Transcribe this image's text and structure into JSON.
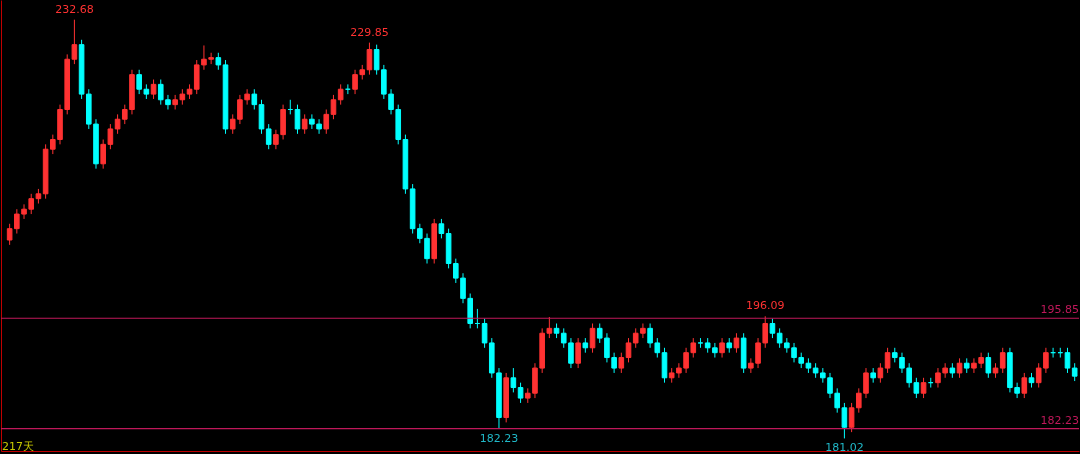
{
  "chart_data": {
    "type": "candlestick",
    "categories": [
      null,
      null,
      null,
      null,
      null,
      null,
      null,
      null,
      null,
      null,
      null,
      null,
      null,
      null,
      null,
      null,
      null,
      null,
      null,
      null,
      null,
      null,
      null,
      null,
      null,
      null,
      null,
      null,
      null,
      null,
      null,
      null,
      null,
      null,
      null,
      null,
      null,
      null,
      null,
      null,
      null,
      null,
      null,
      null,
      null,
      null,
      null,
      null,
      null,
      null,
      null,
      null,
      null,
      null,
      null,
      null,
      null,
      null,
      null,
      null,
      null,
      null,
      null,
      null,
      null,
      null,
      null,
      null,
      null,
      null,
      null,
      null,
      null,
      null,
      null,
      null,
      null,
      null,
      null,
      null,
      null,
      null,
      null,
      null,
      null,
      null,
      null,
      null,
      null,
      null,
      null,
      null,
      null,
      null,
      null,
      null,
      null,
      null,
      null,
      null,
      null,
      null,
      null,
      null,
      null,
      null,
      null,
      null,
      null,
      null,
      null,
      null,
      null,
      null,
      null,
      null,
      null,
      null,
      null,
      null,
      null,
      null,
      null,
      null,
      null,
      null,
      null,
      null,
      null,
      null,
      null,
      null,
      null,
      null,
      null,
      null,
      null,
      null,
      null,
      null,
      null,
      null,
      null,
      null,
      null,
      null,
      null,
      null,
      null
    ],
    "ohlc": [
      [
        205.5,
        207.5,
        204.9,
        206.9
      ],
      [
        206.9,
        209.3,
        206.3,
        208.7
      ],
      [
        208.7,
        209.9,
        208.1,
        209.3
      ],
      [
        209.3,
        211.2,
        208.7,
        210.6
      ],
      [
        210.6,
        211.8,
        210.0,
        211.2
      ],
      [
        211.2,
        217.3,
        210.6,
        216.7
      ],
      [
        216.7,
        218.5,
        216.1,
        217.9
      ],
      [
        217.9,
        222.2,
        217.3,
        221.6
      ],
      [
        221.6,
        228.4,
        221.0,
        227.8
      ],
      [
        227.8,
        232.68,
        227.2,
        229.6
      ],
      [
        229.6,
        230.2,
        222.9,
        223.5
      ],
      [
        223.5,
        224.1,
        219.2,
        219.8
      ],
      [
        219.8,
        220.4,
        214.3,
        214.9
      ],
      [
        214.9,
        217.9,
        214.3,
        217.3
      ],
      [
        217.3,
        219.8,
        216.7,
        219.2
      ],
      [
        219.2,
        221.0,
        218.6,
        220.4
      ],
      [
        220.4,
        222.2,
        219.8,
        221.6
      ],
      [
        221.6,
        226.5,
        221.0,
        225.9
      ],
      [
        225.9,
        226.5,
        223.5,
        224.1
      ],
      [
        224.1,
        224.7,
        222.9,
        223.5
      ],
      [
        223.5,
        225.3,
        222.9,
        224.7
      ],
      [
        224.7,
        225.3,
        222.2,
        222.8
      ],
      [
        222.8,
        223.4,
        221.6,
        222.2
      ],
      [
        222.2,
        223.4,
        221.6,
        222.8
      ],
      [
        222.8,
        224.1,
        222.2,
        223.5
      ],
      [
        223.5,
        224.7,
        222.9,
        224.1
      ],
      [
        224.1,
        227.7,
        223.5,
        227.1
      ],
      [
        227.1,
        229.5,
        226.5,
        227.8
      ],
      [
        227.8,
        228.6,
        227.2,
        228.0
      ],
      [
        228.0,
        228.6,
        226.5,
        227.1
      ],
      [
        227.1,
        227.7,
        218.6,
        219.2
      ],
      [
        219.2,
        221.0,
        218.6,
        220.4
      ],
      [
        220.4,
        223.4,
        219.8,
        222.8
      ],
      [
        222.8,
        224.1,
        222.2,
        223.5
      ],
      [
        223.5,
        224.1,
        221.6,
        222.2
      ],
      [
        222.2,
        222.8,
        218.6,
        219.2
      ],
      [
        219.2,
        219.8,
        216.7,
        217.3
      ],
      [
        217.3,
        219.1,
        216.7,
        218.5
      ],
      [
        218.5,
        222.2,
        217.9,
        221.6
      ],
      [
        221.6,
        222.8,
        221.0,
        221.6
      ],
      [
        221.6,
        222.2,
        218.6,
        219.2
      ],
      [
        219.2,
        221.0,
        218.6,
        220.4
      ],
      [
        220.4,
        221.0,
        219.2,
        219.8
      ],
      [
        219.8,
        220.4,
        218.6,
        219.2
      ],
      [
        219.2,
        221.6,
        218.6,
        221.0
      ],
      [
        221.0,
        223.4,
        220.4,
        222.8
      ],
      [
        222.8,
        224.7,
        222.2,
        224.1
      ],
      [
        224.1,
        224.7,
        223.5,
        224.1
      ],
      [
        224.1,
        226.5,
        223.5,
        225.9
      ],
      [
        225.9,
        227.1,
        225.3,
        226.5
      ],
      [
        226.5,
        229.85,
        225.9,
        229.0
      ],
      [
        229.0,
        229.6,
        225.9,
        226.5
      ],
      [
        226.5,
        227.1,
        222.9,
        223.5
      ],
      [
        223.5,
        224.1,
        221.0,
        221.6
      ],
      [
        221.6,
        222.2,
        217.3,
        217.9
      ],
      [
        217.9,
        218.5,
        211.2,
        211.8
      ],
      [
        211.8,
        212.4,
        206.3,
        206.9
      ],
      [
        206.9,
        207.5,
        205.1,
        205.7
      ],
      [
        205.7,
        206.3,
        202.6,
        203.2
      ],
      [
        203.2,
        208.1,
        202.6,
        207.5
      ],
      [
        207.5,
        208.1,
        205.7,
        206.3
      ],
      [
        206.3,
        206.9,
        202.0,
        202.6
      ],
      [
        202.6,
        203.2,
        200.2,
        200.8
      ],
      [
        200.8,
        201.4,
        197.7,
        198.3
      ],
      [
        198.3,
        198.9,
        194.6,
        195.2
      ],
      [
        195.2,
        197.0,
        194.6,
        195.2
      ],
      [
        195.2,
        195.8,
        192.2,
        192.8
      ],
      [
        192.8,
        193.4,
        188.5,
        189.1
      ],
      [
        189.1,
        189.7,
        182.23,
        183.6
      ],
      [
        183.6,
        189.1,
        183.0,
        188.5
      ],
      [
        188.5,
        189.7,
        186.7,
        187.3
      ],
      [
        187.3,
        187.9,
        185.4,
        186.0
      ],
      [
        186.0,
        187.2,
        185.4,
        186.6
      ],
      [
        186.6,
        190.3,
        186.0,
        189.7
      ],
      [
        189.7,
        194.6,
        189.1,
        194.0
      ],
      [
        194.0,
        196.0,
        193.4,
        194.6
      ],
      [
        194.6,
        195.2,
        193.4,
        194.0
      ],
      [
        194.0,
        194.6,
        192.2,
        192.8
      ],
      [
        192.8,
        193.4,
        189.7,
        190.3
      ],
      [
        190.3,
        193.4,
        189.7,
        192.8
      ],
      [
        192.8,
        193.4,
        191.6,
        192.2
      ],
      [
        192.2,
        195.2,
        191.6,
        194.6
      ],
      [
        194.6,
        195.2,
        192.8,
        193.4
      ],
      [
        193.4,
        194.0,
        190.4,
        191.0
      ],
      [
        191.0,
        191.6,
        189.1,
        189.7
      ],
      [
        189.7,
        191.6,
        189.1,
        191.0
      ],
      [
        191.0,
        193.4,
        190.4,
        192.8
      ],
      [
        192.8,
        194.6,
        192.2,
        194.0
      ],
      [
        194.0,
        195.2,
        193.4,
        194.6
      ],
      [
        194.6,
        195.2,
        192.2,
        192.8
      ],
      [
        192.8,
        193.4,
        191.0,
        191.6
      ],
      [
        191.6,
        192.2,
        187.9,
        188.5
      ],
      [
        188.5,
        189.7,
        187.9,
        189.1
      ],
      [
        189.1,
        190.3,
        188.5,
        189.7
      ],
      [
        189.7,
        192.2,
        189.1,
        191.6
      ],
      [
        191.6,
        193.4,
        191.0,
        192.8
      ],
      [
        192.8,
        193.4,
        192.2,
        192.8
      ],
      [
        192.8,
        193.4,
        191.6,
        192.2
      ],
      [
        192.2,
        192.8,
        191.0,
        191.6
      ],
      [
        191.6,
        193.4,
        191.0,
        192.8
      ],
      [
        192.8,
        193.4,
        191.6,
        192.2
      ],
      [
        192.2,
        194.0,
        191.6,
        193.4
      ],
      [
        193.4,
        194.0,
        189.1,
        189.7
      ],
      [
        189.7,
        190.9,
        189.1,
        190.3
      ],
      [
        190.3,
        193.4,
        189.7,
        192.8
      ],
      [
        192.8,
        196.09,
        192.2,
        195.2
      ],
      [
        195.2,
        195.8,
        193.4,
        194.0
      ],
      [
        194.0,
        194.6,
        192.2,
        192.8
      ],
      [
        192.8,
        193.4,
        191.6,
        192.2
      ],
      [
        192.2,
        192.8,
        190.4,
        191.0
      ],
      [
        191.0,
        191.6,
        189.7,
        190.3
      ],
      [
        190.3,
        190.9,
        189.1,
        189.7
      ],
      [
        189.7,
        190.3,
        188.5,
        189.1
      ],
      [
        189.1,
        189.7,
        187.9,
        188.5
      ],
      [
        188.5,
        189.1,
        186.0,
        186.6
      ],
      [
        186.6,
        187.2,
        184.2,
        184.8
      ],
      [
        184.8,
        185.4,
        181.02,
        182.4
      ],
      [
        182.4,
        185.4,
        181.8,
        184.8
      ],
      [
        184.8,
        187.2,
        184.2,
        186.6
      ],
      [
        186.6,
        189.7,
        186.0,
        189.1
      ],
      [
        189.1,
        189.7,
        187.9,
        188.5
      ],
      [
        188.5,
        190.3,
        187.9,
        189.7
      ],
      [
        189.7,
        192.2,
        189.1,
        191.6
      ],
      [
        191.6,
        192.2,
        190.4,
        191.0
      ],
      [
        191.0,
        191.6,
        189.1,
        189.7
      ],
      [
        189.7,
        190.3,
        187.3,
        187.9
      ],
      [
        187.9,
        188.5,
        186.0,
        186.6
      ],
      [
        186.6,
        188.5,
        186.0,
        187.9
      ],
      [
        187.9,
        188.5,
        187.3,
        187.9
      ],
      [
        187.9,
        189.7,
        187.3,
        189.1
      ],
      [
        189.1,
        190.3,
        188.5,
        189.7
      ],
      [
        189.7,
        190.3,
        188.5,
        189.1
      ],
      [
        189.1,
        190.9,
        188.5,
        190.3
      ],
      [
        190.3,
        190.9,
        189.1,
        189.7
      ],
      [
        189.7,
        190.9,
        189.1,
        190.3
      ],
      [
        190.3,
        191.6,
        189.7,
        191.0
      ],
      [
        191.0,
        191.6,
        188.5,
        189.1
      ],
      [
        189.1,
        190.3,
        188.5,
        189.7
      ],
      [
        189.7,
        192.2,
        189.1,
        191.6
      ],
      [
        191.6,
        192.2,
        186.7,
        187.3
      ],
      [
        187.3,
        187.9,
        186.0,
        186.6
      ],
      [
        186.6,
        189.1,
        186.0,
        188.5
      ],
      [
        188.5,
        189.1,
        187.3,
        187.9
      ],
      [
        187.9,
        190.3,
        187.3,
        189.7
      ],
      [
        189.7,
        192.2,
        189.1,
        191.6
      ],
      [
        191.6,
        192.2,
        191.0,
        191.6
      ],
      [
        191.6,
        192.2,
        191.0,
        191.6
      ],
      [
        191.6,
        192.2,
        189.1,
        189.7
      ],
      [
        189.7,
        190.3,
        188.1,
        188.7
      ]
    ],
    "colors": [
      "#ff3232",
      "#ff3232",
      "#ff3232",
      "#ff3232",
      "#ff3232",
      "#ff3232",
      "#ff3232",
      "#ff3232",
      "#ff3232",
      "#ff3232",
      "#00ffff",
      "#00ffff",
      "#00ffff",
      "#ff3232",
      "#ff3232",
      "#ff3232",
      "#ff3232",
      "#ff3232",
      "#00ffff",
      "#00ffff",
      "#ff3232",
      "#00ffff",
      "#00ffff",
      "#ff3232",
      "#ff3232",
      "#ff3232",
      "#ff3232",
      "#ff3232",
      "#ff3232",
      "#00ffff",
      "#00ffff",
      "#ff3232",
      "#ff3232",
      "#ff3232",
      "#00ffff",
      "#00ffff",
      "#00ffff",
      "#ff3232",
      "#ff3232",
      "#00ffff",
      "#00ffff",
      "#ff3232",
      "#00ffff",
      "#00ffff",
      "#ff3232",
      "#ff3232",
      "#ff3232",
      "#00ffff",
      "#ff3232",
      "#ff3232",
      "#ff3232",
      "#00ffff",
      "#00ffff",
      "#00ffff",
      "#00ffff",
      "#00ffff",
      "#00ffff",
      "#00ffff",
      "#00ffff",
      "#ff3232",
      "#00ffff",
      "#00ffff",
      "#00ffff",
      "#00ffff",
      "#00ffff",
      "#00ffff",
      "#00ffff",
      "#00ffff",
      "#00ffff",
      "#ff3232",
      "#00ffff",
      "#00ffff",
      "#ff3232",
      "#ff3232",
      "#ff3232",
      "#ff3232",
      "#00ffff",
      "#00ffff",
      "#00ffff",
      "#ff3232",
      "#00ffff",
      "#ff3232",
      "#00ffff",
      "#00ffff",
      "#00ffff",
      "#ff3232",
      "#ff3232",
      "#ff3232",
      "#ff3232",
      "#00ffff",
      "#00ffff",
      "#00ffff",
      "#ff3232",
      "#ff3232",
      "#ff3232",
      "#ff3232",
      "#00ffff",
      "#00ffff",
      "#00ffff",
      "#ff3232",
      "#00ffff",
      "#ff3232",
      "#00ffff",
      "#ff3232",
      "#ff3232",
      "#ff3232",
      "#00ffff",
      "#00ffff",
      "#00ffff",
      "#00ffff",
      "#00ffff",
      "#00ffff",
      "#00ffff",
      "#00ffff",
      "#00ffff",
      "#00ffff",
      "#00ffff",
      "#ff3232",
      "#ff3232",
      "#ff3232",
      "#00ffff",
      "#ff3232",
      "#ff3232",
      "#00ffff",
      "#00ffff",
      "#00ffff",
      "#00ffff",
      "#ff3232",
      "#00ffff",
      "#ff3232",
      "#ff3232",
      "#00ffff",
      "#ff3232",
      "#00ffff",
      "#ff3232",
      "#ff3232",
      "#00ffff",
      "#ff3232",
      "#ff3232",
      "#00ffff",
      "#00ffff",
      "#ff3232",
      "#00ffff",
      "#ff3232",
      "#ff3232",
      "#00ffff",
      "#00ffff",
      "#00ffff",
      "#00ffff"
    ],
    "tick_labels": false,
    "ref_lines": [
      {
        "axis": "y",
        "value": 195.85,
        "label": "195.85",
        "color": "#c0185a"
      },
      {
        "axis": "y",
        "value": 182.23,
        "label": "182.23",
        "color": "#c0185a"
      }
    ],
    "annotations": [
      {
        "text": "232.68",
        "y": 232.68
      },
      {
        "text": "229.85",
        "y": 229.85
      },
      {
        "text": "196.09",
        "y": 196.09
      },
      {
        "text": "182.23",
        "y": 182.23
      },
      {
        "text": "181.02",
        "y": 181.02
      },
      "217天"
    ]
  }
}
